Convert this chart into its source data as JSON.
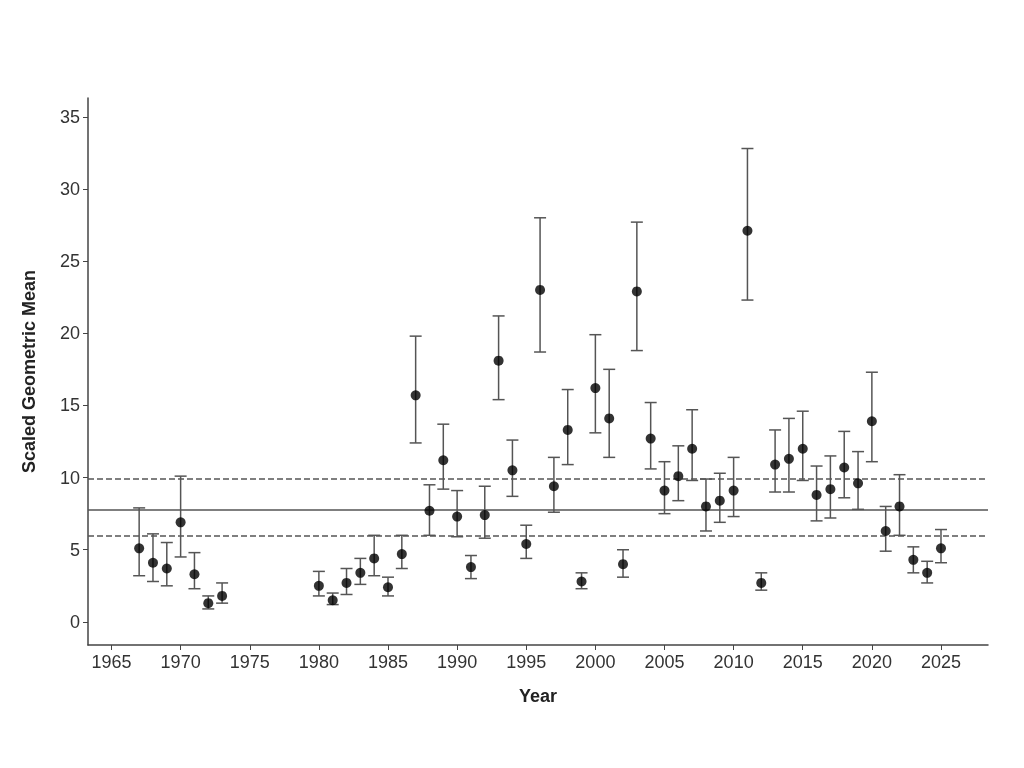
{
  "chart_data": {
    "type": "scatter",
    "xlabel": "Year",
    "ylabel": "Scaled Geometric Mean",
    "x": [
      1967,
      1968,
      1969,
      1970,
      1971,
      1972,
      1973,
      1980,
      1981,
      1982,
      1983,
      1984,
      1985,
      1986,
      1987,
      1988,
      1989,
      1990,
      1991,
      1992,
      1993,
      1994,
      1995,
      1996,
      1997,
      1998,
      1999,
      2000,
      2001,
      2002,
      2003,
      2004,
      2005,
      2006,
      2007,
      2008,
      2009,
      2010,
      2011,
      2012,
      2013,
      2014,
      2015,
      2016,
      2017,
      2018,
      2019,
      2020,
      2021,
      2022,
      2023,
      2024,
      2025
    ],
    "series": [
      {
        "color": "#000000",
        "values": [
          5.1,
          4.1,
          3.7,
          6.9,
          3.3,
          1.3,
          1.8,
          2.5,
          1.5,
          2.7,
          3.4,
          4.4,
          2.4,
          4.7,
          15.7,
          7.7,
          11.2,
          7.3,
          3.8,
          7.4,
          18.1,
          10.5,
          5.4,
          23.0,
          9.4,
          13.3,
          2.8,
          16.2,
          14.1,
          4.0,
          22.9,
          12.7,
          9.1,
          10.1,
          12.0,
          8.0,
          8.4,
          9.1,
          27.1,
          2.7,
          10.9,
          11.3,
          12.0,
          8.8,
          9.2,
          10.7,
          9.6,
          13.9,
          6.3,
          8.0,
          4.3,
          3.4,
          5.1
        ],
        "errors": [
          [
            3.2,
            7.9
          ],
          [
            2.8,
            6.1
          ],
          [
            2.5,
            5.5
          ],
          [
            4.5,
            10.1
          ],
          [
            2.3,
            4.8
          ],
          [
            0.9,
            1.8
          ],
          [
            1.3,
            2.7
          ],
          [
            1.8,
            3.5
          ],
          [
            1.2,
            2.0
          ],
          [
            1.9,
            3.7
          ],
          [
            2.6,
            4.4
          ],
          [
            3.2,
            6.0
          ],
          [
            1.8,
            3.1
          ],
          [
            3.7,
            6.0
          ],
          [
            12.4,
            19.8
          ],
          [
            6.0,
            9.5
          ],
          [
            9.2,
            13.7
          ],
          [
            5.9,
            9.1
          ],
          [
            3.0,
            4.6
          ],
          [
            5.8,
            9.4
          ],
          [
            15.4,
            21.2
          ],
          [
            8.7,
            12.6
          ],
          [
            4.4,
            6.7
          ],
          [
            18.7,
            28.0
          ],
          [
            7.6,
            11.4
          ],
          [
            10.9,
            16.1
          ],
          [
            2.3,
            3.4
          ],
          [
            13.1,
            19.9
          ],
          [
            11.4,
            17.5
          ],
          [
            3.1,
            5.0
          ],
          [
            18.8,
            27.7
          ],
          [
            10.6,
            15.2
          ],
          [
            7.5,
            11.1
          ],
          [
            8.4,
            12.2
          ],
          [
            9.8,
            14.7
          ],
          [
            6.3,
            9.9
          ],
          [
            6.9,
            10.3
          ],
          [
            7.3,
            11.4
          ],
          [
            22.3,
            32.8
          ],
          [
            2.2,
            3.4
          ],
          [
            9.0,
            13.3
          ],
          [
            9.0,
            14.1
          ],
          [
            9.8,
            14.6
          ],
          [
            7.0,
            10.8
          ],
          [
            7.2,
            11.5
          ],
          [
            8.6,
            13.2
          ],
          [
            7.8,
            11.8
          ],
          [
            11.1,
            17.3
          ],
          [
            4.9,
            8.0
          ],
          [
            6.0,
            10.2
          ],
          [
            3.4,
            5.2
          ],
          [
            2.7,
            4.2
          ],
          [
            4.1,
            6.4
          ]
        ]
      }
    ],
    "xlim": [
      1963.3,
      2028.4
    ],
    "xticks": [
      1965,
      1970,
      1975,
      1980,
      1985,
      1990,
      1995,
      2000,
      2005,
      2010,
      2015,
      2020,
      2025
    ],
    "ylim": [
      -1.6,
      36.3
    ],
    "yticks": [
      0,
      5,
      10,
      15,
      20,
      25,
      30,
      35
    ],
    "ref_lines": [
      {
        "axis": "y",
        "value": 7.8,
        "color": "#555555",
        "line_style": "solid"
      },
      {
        "axis": "y",
        "value": 6.0,
        "color": "#555555",
        "line_style": "dashed"
      },
      {
        "axis": "y",
        "value": 9.9,
        "color": "#555555",
        "line_style": "dashed"
      }
    ],
    "grid": false,
    "marker": "circle"
  }
}
